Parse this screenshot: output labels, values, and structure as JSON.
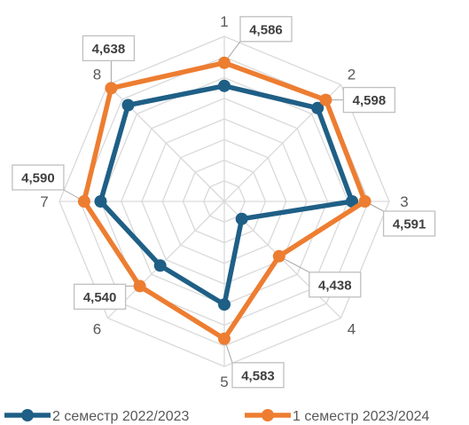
{
  "chart_data": {
    "type": "radar",
    "categories": [
      "1",
      "2",
      "3",
      "4",
      "5",
      "6",
      "7",
      "8"
    ],
    "rlim": [
      4.25,
      4.65
    ],
    "grid": true,
    "legend_position": "bottom",
    "series": [
      {
        "name": "2 семестр 2022/2023",
        "color": "#1f5f86",
        "values": [
          4.53,
          4.57,
          4.56,
          4.31,
          4.5,
          4.47,
          4.55,
          4.58
        ]
      },
      {
        "name": "1 семестр 2023/2024",
        "color": "#ed7d31",
        "values": [
          4.586,
          4.598,
          4.591,
          4.438,
          4.583,
          4.54,
          4.59,
          4.638
        ]
      }
    ],
    "data_labels": [
      "4,586",
      "4,598",
      "4,591",
      "4,438",
      "4,583",
      "4,540",
      "4,590",
      "4,638"
    ]
  }
}
